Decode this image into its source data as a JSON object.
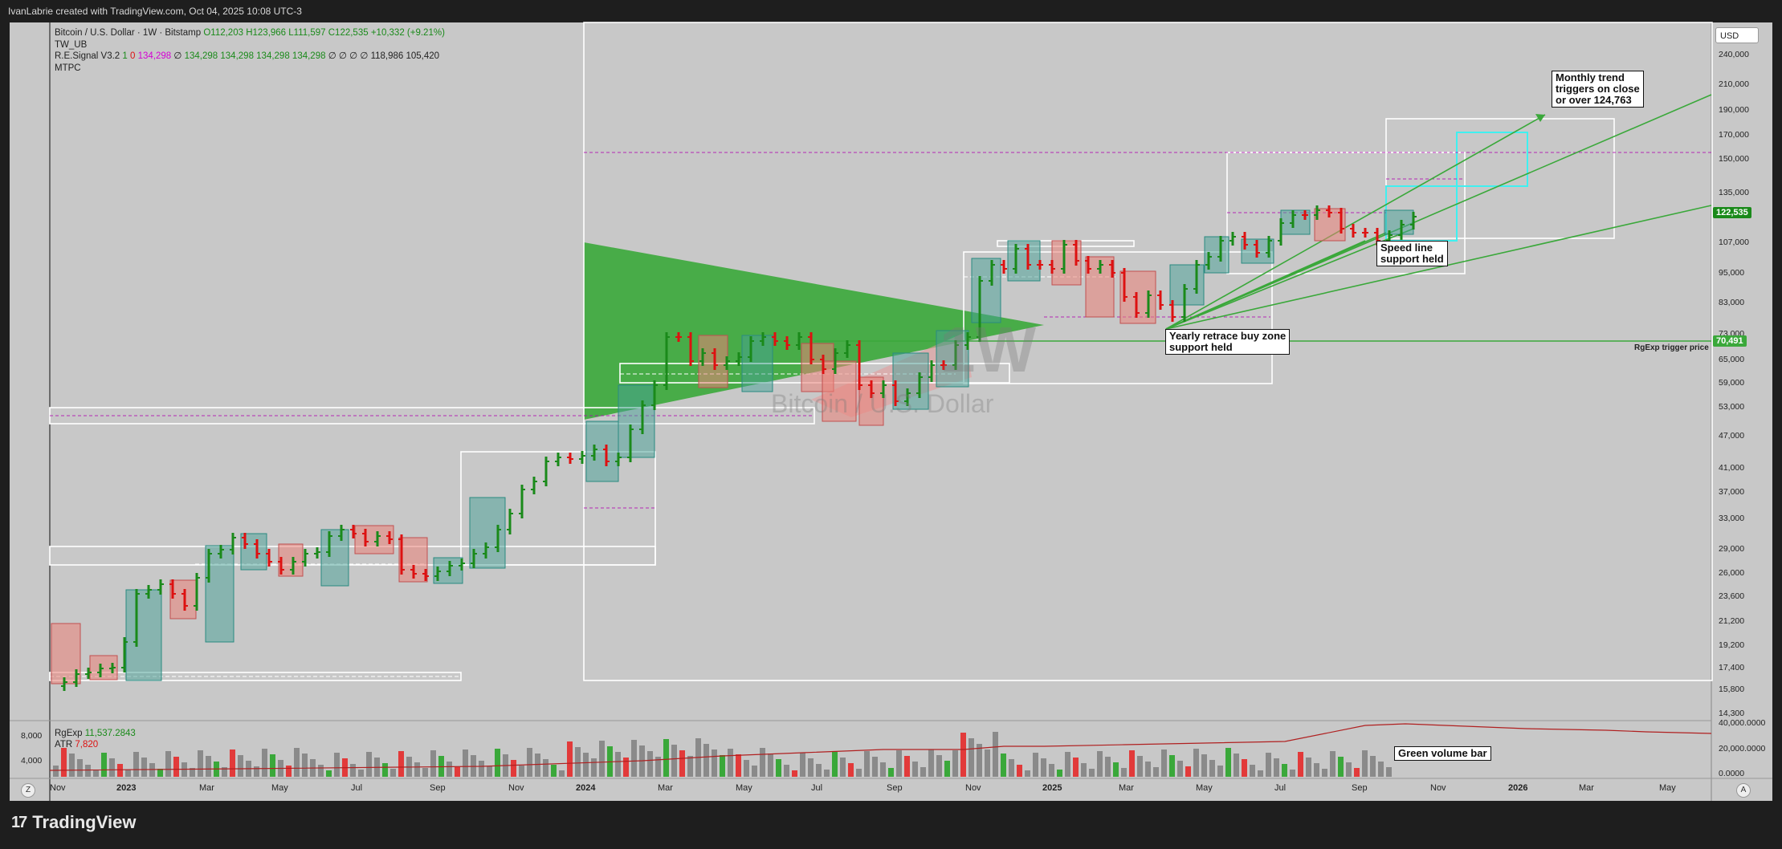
{
  "header": {
    "credit": "IvanLabrie created with TradingView.com, Oct 04, 2025 10:08 UTC-3"
  },
  "legend": {
    "symbol": "Bitcoin / U.S. Dollar · 1W · Bitstamp",
    "open": "O112,203",
    "high": "H123,966",
    "low": "L111,597",
    "close": "C122,535",
    "change": "+10,332 (+9.21%)",
    "ind1": "TW_UB",
    "ind2_name": "R.E.Signal V3.2",
    "ind2_a": "1",
    "ind2_b": "0",
    "ind2_c": "134,298",
    "ind2_d": "∅",
    "ind2_vals": "134,298  134,298  134,298  134,298",
    "ind2_nulls": "∅  ∅  ∅  ∅",
    "ind2_e": "118,986",
    "ind2_f": "105,420",
    "ind3": "MTPC"
  },
  "watermark": {
    "big": "1W",
    "sub": "Bitcoin / U.S. Dollar"
  },
  "currency": "USD",
  "price_axis": [
    "240,000",
    "210,000",
    "190,000",
    "170,000",
    "150,000",
    "135,000",
    "107,000",
    "95,000",
    "83,000",
    "73,000",
    "65,000",
    "59,000",
    "53,000",
    "47,000",
    "41,000",
    "37,000",
    "33,000",
    "29,000",
    "26,000",
    "23,600",
    "21,200",
    "19,200",
    "17,400",
    "15,800",
    "14,300"
  ],
  "current_price": "122,535",
  "trigger_price": "70,491",
  "trigger_label": "RgExp trigger price",
  "time_axis": [
    "Nov",
    "2023",
    "Mar",
    "May",
    "Jul",
    "Sep",
    "Nov",
    "2024",
    "Mar",
    "May",
    "Jul",
    "Sep",
    "Nov",
    "2025",
    "Mar",
    "May",
    "Jul",
    "Sep",
    "Nov",
    "2026",
    "Mar",
    "May"
  ],
  "annotations": {
    "monthly": [
      "Monthly trend",
      "triggers on close",
      "or over 124,763"
    ],
    "speed": [
      "Speed line",
      "support held"
    ],
    "yearly": [
      "Yearly retrace buy zone",
      "support held"
    ],
    "volume": "Green volume bar"
  },
  "volume_pane": {
    "rgexp_label": "RgExp",
    "rgexp_value": "11,537.2843",
    "atr_label": "ATR",
    "atr_value": "7,820",
    "left_scale": [
      "8,000",
      "4,000"
    ],
    "right_scale": [
      "40,000.0000",
      "20,000.0000",
      "0.0000"
    ]
  },
  "buttons": {
    "z": "Z",
    "a": "A"
  },
  "brand": {
    "logo": "17",
    "name": "TradingView"
  },
  "colors": {
    "up": "#1a8a1a",
    "down": "#dd1111",
    "bg": "#c8c8c8",
    "triangle": "#3aa83a"
  }
}
